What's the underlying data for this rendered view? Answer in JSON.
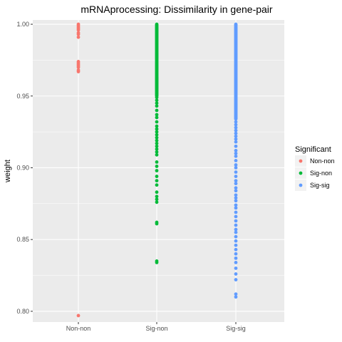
{
  "chart_data": {
    "type": "scatter",
    "title": "mRNAprocessing: Dissimilarity in gene-pair",
    "xlabel": "",
    "ylabel": "weight",
    "categories": [
      "Non-non",
      "Sig-non",
      "Sig-sig"
    ],
    "ylim": [
      0.7925,
      1.003
    ],
    "yticks": [
      "0.80",
      "0.85",
      "0.90",
      "0.95",
      "1.00"
    ],
    "grid": true,
    "legend": {
      "title": "Significant",
      "placement": "right",
      "entries": [
        "Non-non",
        "Sig-non",
        "Sig-sig"
      ]
    },
    "colors": {
      "Non-non": "#F8766D",
      "Sig-non": "#00BA38",
      "Sig-sig": "#619CFF",
      "panel": "#EBEBEB",
      "grid": "#FFFFFF"
    },
    "series": [
      {
        "name": "Non-non",
        "x": "Non-non",
        "values": [
          1.0,
          0.999,
          0.998,
          0.997,
          0.996,
          0.994,
          0.993,
          0.991,
          0.974,
          0.973,
          0.972,
          0.971,
          0.97,
          0.968,
          0.967,
          0.797
        ]
      },
      {
        "name": "Sig-non",
        "x": "Sig-non",
        "range": [
          0.95,
          1.0
        ],
        "values": [
          0.949,
          0.947,
          0.945,
          0.943,
          0.94,
          0.937,
          0.935,
          0.932,
          0.929,
          0.927,
          0.925,
          0.923,
          0.921,
          0.919,
          0.917,
          0.915,
          0.913,
          0.911,
          0.909,
          0.904,
          0.901,
          0.898,
          0.894,
          0.891,
          0.888,
          0.883,
          0.88,
          0.878,
          0.876,
          0.862,
          0.861,
          0.835,
          0.834
        ]
      },
      {
        "name": "Sig-sig",
        "x": "Sig-sig",
        "range": [
          0.934,
          1.0
        ],
        "values": [
          0.932,
          0.93,
          0.928,
          0.926,
          0.924,
          0.922,
          0.92,
          0.918,
          0.915,
          0.912,
          0.91,
          0.908,
          0.905,
          0.902,
          0.9,
          0.897,
          0.894,
          0.891,
          0.889,
          0.886,
          0.884,
          0.881,
          0.879,
          0.877,
          0.874,
          0.872,
          0.869,
          0.866,
          0.863,
          0.86,
          0.857,
          0.855,
          0.852,
          0.849,
          0.846,
          0.843,
          0.84,
          0.837,
          0.834,
          0.83,
          0.826,
          0.822,
          0.812,
          0.81
        ]
      }
    ]
  }
}
